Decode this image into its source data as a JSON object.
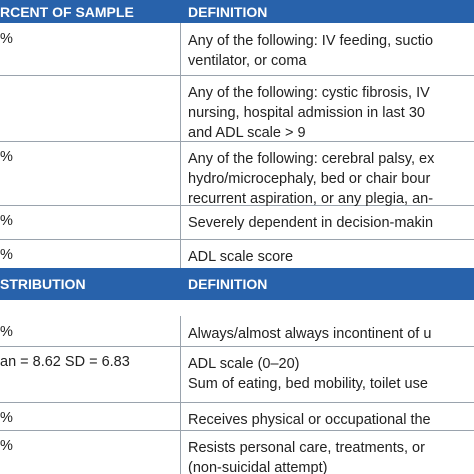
{
  "sections": [
    {
      "header": [
        "RCENT OF SAMPLE",
        "DEFINITION"
      ],
      "rows": [
        {
          "value": "%",
          "definition": [
            "Any of the following: IV feeding, suctio",
            "ventilator, or coma"
          ]
        },
        {
          "definition": [
            "Any of the following: cystic fibrosis, IV",
            "nursing, hospital admission in last 30",
            "and ADL scale > 9"
          ]
        },
        {
          "value": "%",
          "definition": [
            "Any of the following: cerebral palsy, ex",
            "hydro/microcephaly, bed or chair bour",
            "recurrent aspiration, or any plegia, an-"
          ]
        },
        {
          "value": "%",
          "definition": [
            "Severely dependent in decision-makin"
          ]
        },
        {
          "value": "%",
          "definition": [
            "ADL scale score"
          ]
        }
      ]
    },
    {
      "header": [
        "STRIBUTION",
        "DEFINITION"
      ],
      "rows": [
        {
          "value": "%",
          "definition": [
            "Always/almost always incontinent of u"
          ]
        },
        {
          "value": "an = 8.62 SD = 6.83",
          "definition": [
            "ADL scale (0–20)",
            "Sum of eating, bed mobility, toilet use"
          ]
        },
        {
          "value": "%",
          "definition": [
            "Receives physical or occupational the"
          ]
        },
        {
          "value": "%",
          "definition": [
            "Resists personal care, treatments, or",
            "(non-suicidal attempt)"
          ]
        }
      ]
    }
  ]
}
